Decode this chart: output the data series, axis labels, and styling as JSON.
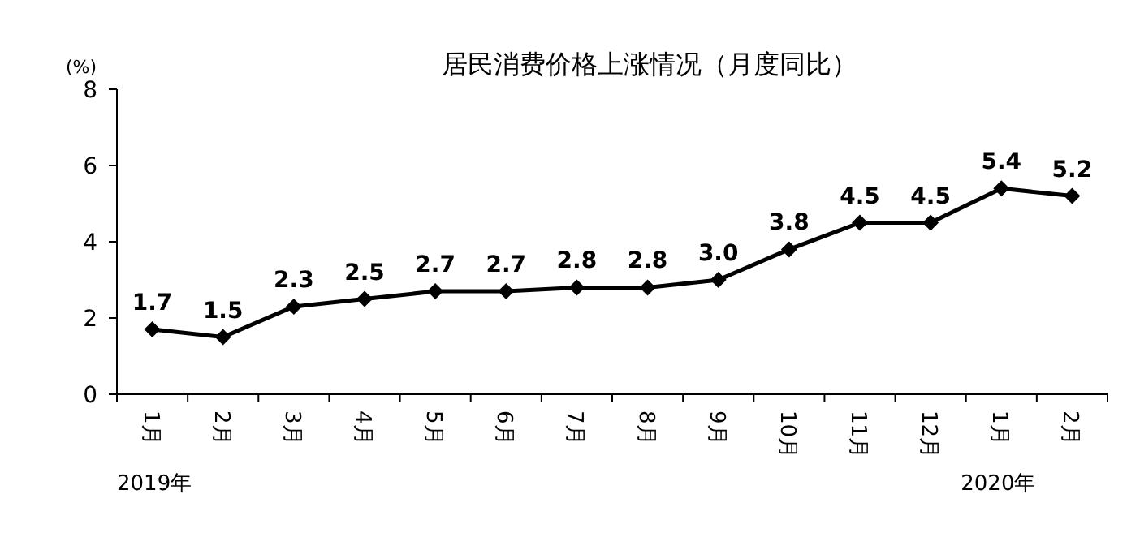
{
  "chart_data": {
    "type": "line",
    "title": "居民消费价格上涨情况（月度同比）",
    "ylabel": "(%)",
    "categories": [
      "1月",
      "2月",
      "3月",
      "4月",
      "5月",
      "6月",
      "7月",
      "8月",
      "9月",
      "10月",
      "11月",
      "12月",
      "1月",
      "2月"
    ],
    "series": [
      {
        "color": "#000000",
        "values": [
          1.7,
          1.5,
          2.3,
          2.5,
          2.7,
          2.7,
          2.8,
          2.8,
          3.0,
          3.8,
          4.5,
          4.5,
          5.4,
          5.2
        ],
        "value_labels": [
          "1.7",
          "1.5",
          "2.3",
          "2.5",
          "2.7",
          "2.7",
          "2.8",
          "2.8",
          "3.0",
          "3.8",
          "4.5",
          "4.5",
          "5.4",
          "5.2"
        ]
      }
    ],
    "ylim": [
      0,
      8
    ],
    "yticks": [
      0,
      2,
      4,
      6,
      8
    ],
    "grid": false,
    "marker": "diamond",
    "line_style": "solid",
    "annotations": [
      "2019年",
      "2020年"
    ]
  }
}
